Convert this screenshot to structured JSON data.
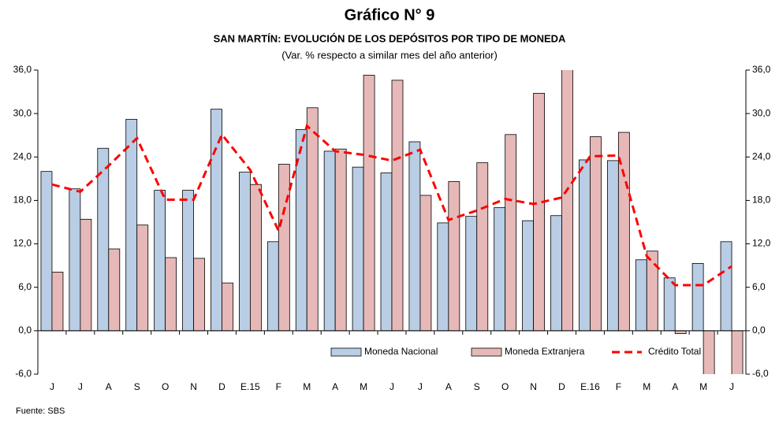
{
  "chart_data": {
    "type": "bar",
    "title": "Gráfico N° 9",
    "subtitle": "SAN MARTÍN: EVOLUCIÓN DE LOS DEPÓSITOS POR TIPO DE MONEDA",
    "note": "(Var. % respecto a similar mes del año anterior)",
    "source": "Fuente: SBS",
    "categories": [
      "J",
      "J",
      "A",
      "S",
      "O",
      "N",
      "D",
      "E.15",
      "F",
      "M",
      "A",
      "M",
      "J",
      "J",
      "A",
      "S",
      "O",
      "N",
      "D",
      "E.16",
      "F",
      "M",
      "A",
      "M",
      "J"
    ],
    "series": [
      {
        "name": "Moneda Nacional",
        "type": "bar",
        "color": "#b9cde5",
        "values": [
          22.0,
          19.6,
          25.2,
          29.2,
          19.4,
          19.4,
          30.6,
          21.9,
          12.3,
          27.8,
          24.8,
          22.6,
          21.8,
          26.1,
          14.9,
          15.8,
          17.0,
          15.2,
          15.9,
          23.6,
          23.5,
          9.8,
          7.3,
          9.3,
          12.3
        ]
      },
      {
        "name": "Moneda Extranjera",
        "type": "bar",
        "color": "#e6b9b8",
        "values": [
          8.1,
          15.4,
          11.3,
          14.6,
          10.1,
          10.0,
          6.6,
          20.2,
          23.0,
          30.8,
          25.1,
          35.3,
          34.6,
          18.7,
          20.6,
          23.2,
          27.1,
          32.8,
          37.5,
          26.8,
          27.4,
          11.0,
          -0.4,
          -8.0,
          -7.5
        ]
      },
      {
        "name": "Crédito Total",
        "type": "line",
        "color": "#ff0000",
        "values": [
          20.2,
          19.2,
          22.8,
          26.6,
          18.1,
          18.1,
          27.1,
          22.2,
          13.8,
          28.3,
          24.8,
          24.3,
          23.5,
          25.0,
          15.3,
          16.6,
          18.2,
          17.5,
          18.4,
          24.1,
          24.2,
          10.3,
          6.3,
          6.3,
          8.9
        ]
      }
    ],
    "ylim": [
      -6,
      36
    ],
    "yticks": [
      {
        "value": -6,
        "label": "-6,0"
      },
      {
        "value": 0,
        "label": "0,0"
      },
      {
        "value": 6,
        "label": "6,0"
      },
      {
        "value": 12,
        "label": "12,0"
      },
      {
        "value": 18,
        "label": "18,0"
      },
      {
        "value": 24,
        "label": "24,0"
      },
      {
        "value": 30,
        "label": "30,0"
      },
      {
        "value": 36,
        "label": "36,0"
      }
    ],
    "y2lim": [
      -6,
      36
    ],
    "y2ticks": [
      {
        "value": -6,
        "label": "-6,0"
      },
      {
        "value": 0,
        "label": "0,0"
      },
      {
        "value": 6,
        "label": "6,0"
      },
      {
        "value": 12,
        "label": "12,0"
      },
      {
        "value": 18,
        "label": "18,0"
      },
      {
        "value": 24,
        "label": "24,0"
      },
      {
        "value": 30,
        "label": "30,0"
      },
      {
        "value": 36,
        "label": "36,0"
      }
    ],
    "legend": "lower right"
  }
}
